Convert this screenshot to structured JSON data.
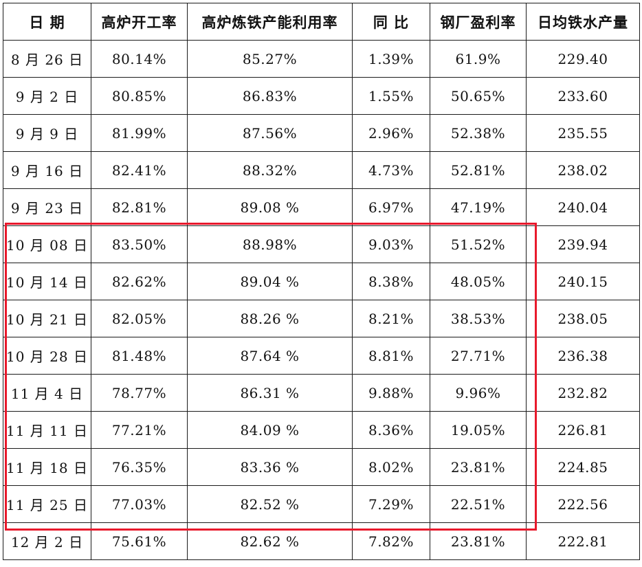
{
  "table": {
    "headers": [
      "日 期",
      "高炉开工率",
      "高炉炼铁产能利用率",
      "同 比",
      "钢厂盈利率",
      "日均铁水产量"
    ],
    "rows": [
      {
        "date": "8 月 26 日",
        "bf_operating_rate": "80.14%",
        "capacity_utilization": "85.27%",
        "yoy": "1.39%",
        "steel_profit_rate": "61.9%",
        "daily_hot_metal": "229.40"
      },
      {
        "date": "9 月 2 日",
        "bf_operating_rate": "80.85%",
        "capacity_utilization": "86.83%",
        "yoy": "1.55%",
        "steel_profit_rate": "50.65%",
        "daily_hot_metal": "233.60"
      },
      {
        "date": "9 月 9 日",
        "bf_operating_rate": "81.99%",
        "capacity_utilization": "87.56%",
        "yoy": "2.96%",
        "steel_profit_rate": "52.38%",
        "daily_hot_metal": "235.55"
      },
      {
        "date": "9 月 16 日",
        "bf_operating_rate": "82.41%",
        "capacity_utilization": "88.32%",
        "yoy": "4.73%",
        "steel_profit_rate": "52.81%",
        "daily_hot_metal": "238.02"
      },
      {
        "date": "9 月 23 日",
        "bf_operating_rate": "82.81%",
        "capacity_utilization": "89.08 %",
        "yoy": "6.97%",
        "steel_profit_rate": "47.19%",
        "daily_hot_metal": "240.04"
      },
      {
        "date": "10 月 08 日",
        "bf_operating_rate": "83.50%",
        "capacity_utilization": "88.98%",
        "yoy": "9.03%",
        "steel_profit_rate": "51.52%",
        "daily_hot_metal": "239.94"
      },
      {
        "date": "10 月 14 日",
        "bf_operating_rate": "82.62%",
        "capacity_utilization": "89.04 %",
        "yoy": "8.38%",
        "steel_profit_rate": "48.05%",
        "daily_hot_metal": "240.15"
      },
      {
        "date": "10 月 21 日",
        "bf_operating_rate": "82.05%",
        "capacity_utilization": "88.26 %",
        "yoy": "8.21%",
        "steel_profit_rate": "38.53%",
        "daily_hot_metal": "238.05"
      },
      {
        "date": "10 月 28 日",
        "bf_operating_rate": "81.48%",
        "capacity_utilization": "87.64 %",
        "yoy": "8.81%",
        "steel_profit_rate": "27.71%",
        "daily_hot_metal": "236.38"
      },
      {
        "date": "11 月 4 日",
        "bf_operating_rate": "78.77%",
        "capacity_utilization": "86.31 %",
        "yoy": "9.88%",
        "steel_profit_rate": "9.96%",
        "daily_hot_metal": "232.82"
      },
      {
        "date": "11 月 11 日",
        "bf_operating_rate": "77.21%",
        "capacity_utilization": "84.09 %",
        "yoy": "8.36%",
        "steel_profit_rate": "19.05%",
        "daily_hot_metal": "226.81"
      },
      {
        "date": "11 月 18 日",
        "bf_operating_rate": "76.35%",
        "capacity_utilization": "83.36 %",
        "yoy": "8.02%",
        "steel_profit_rate": "23.81%",
        "daily_hot_metal": "224.85"
      },
      {
        "date": "11 月 25 日",
        "bf_operating_rate": "77.03%",
        "capacity_utilization": "82.52 %",
        "yoy": "7.29%",
        "steel_profit_rate": "22.51%",
        "daily_hot_metal": "222.56"
      },
      {
        "date": "12 月 2 日",
        "bf_operating_rate": "75.61%",
        "capacity_utilization": "82.62 %",
        "yoy": "7.82%",
        "steel_profit_rate": "23.81%",
        "daily_hot_metal": "222.81"
      }
    ]
  },
  "highlight": {
    "color": "#e8192c",
    "covers_rows": [
      "10 月 08 日",
      "10 月 14 日",
      "10 月 21 日",
      "10 月 28 日",
      "11 月 4 日",
      "11 月 11 日",
      "11 月 18 日",
      "11 月 25 日"
    ]
  }
}
